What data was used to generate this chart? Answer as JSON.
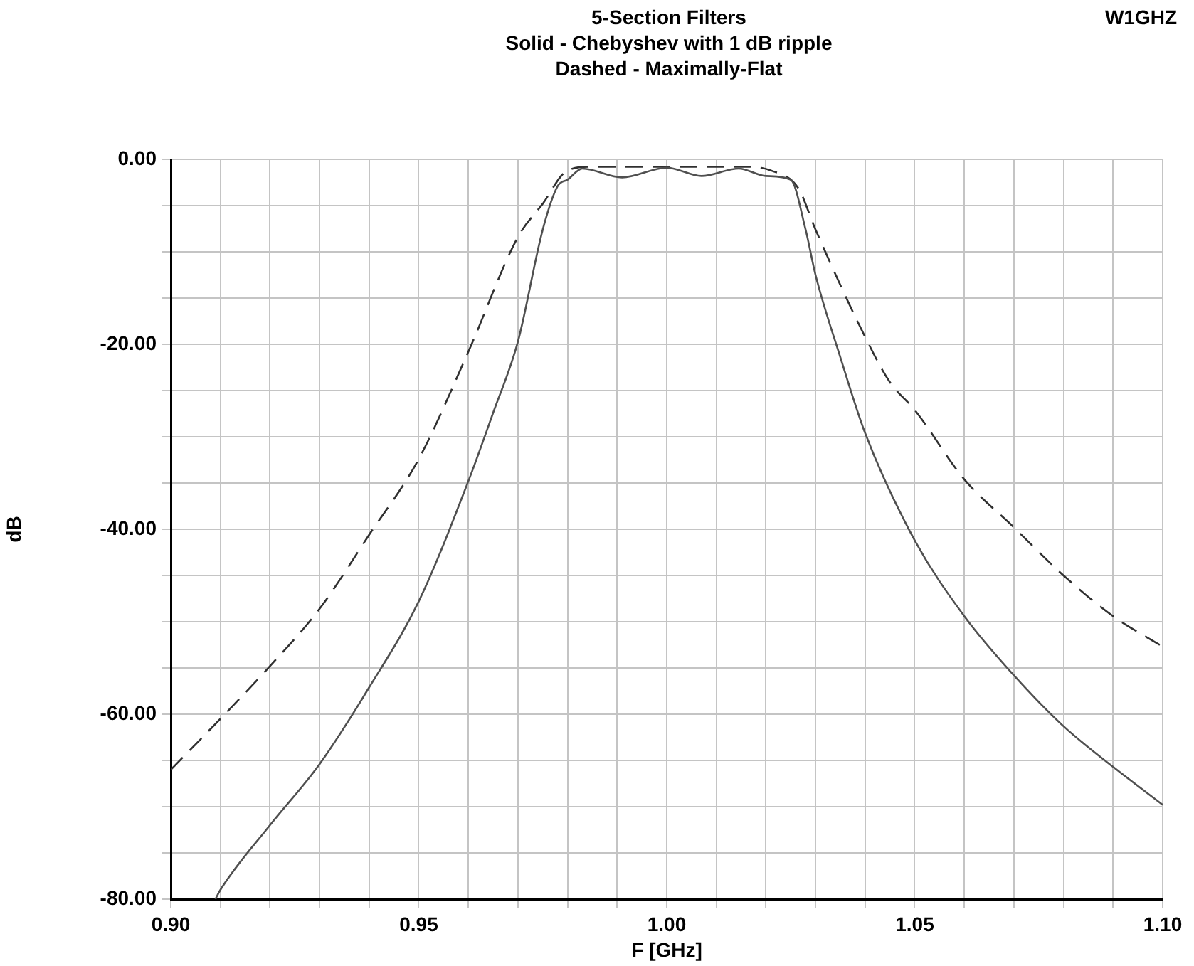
{
  "chart_data": {
    "type": "line",
    "title": "5-Section Filters",
    "subtitle": "Solid - Chebyshev with 1 dB ripple",
    "annotations": [
      "Dashed - Maximally-Flat",
      "W1GHZ"
    ],
    "xlabel": "F [GHz]",
    "ylabel": "dB",
    "xlim": [
      0.9,
      1.1
    ],
    "ylim": [
      -80,
      0
    ],
    "xticks": [
      {
        "value": 0.9,
        "label": "0.90"
      },
      {
        "value": 0.91,
        "label": null
      },
      {
        "value": 0.92,
        "label": null
      },
      {
        "value": 0.93,
        "label": null
      },
      {
        "value": 0.94,
        "label": null
      },
      {
        "value": 0.95,
        "label": "0.95"
      },
      {
        "value": 0.96,
        "label": null
      },
      {
        "value": 0.97,
        "label": null
      },
      {
        "value": 0.98,
        "label": null
      },
      {
        "value": 0.99,
        "label": null
      },
      {
        "value": 1.0,
        "label": "1.00"
      },
      {
        "value": 1.01,
        "label": null
      },
      {
        "value": 1.02,
        "label": null
      },
      {
        "value": 1.03,
        "label": null
      },
      {
        "value": 1.04,
        "label": null
      },
      {
        "value": 1.05,
        "label": "1.05"
      },
      {
        "value": 1.06,
        "label": null
      },
      {
        "value": 1.07,
        "label": null
      },
      {
        "value": 1.08,
        "label": null
      },
      {
        "value": 1.09,
        "label": null
      },
      {
        "value": 1.1,
        "label": "1.10"
      }
    ],
    "yticks": [
      {
        "value": -80,
        "label": "-80.00"
      },
      {
        "value": -75,
        "label": null
      },
      {
        "value": -70,
        "label": null
      },
      {
        "value": -65,
        "label": null
      },
      {
        "value": -60,
        "label": "-60.00"
      },
      {
        "value": -55,
        "label": null
      },
      {
        "value": -50,
        "label": null
      },
      {
        "value": -45,
        "label": null
      },
      {
        "value": -40,
        "label": "-40.00"
      },
      {
        "value": -35,
        "label": null
      },
      {
        "value": -30,
        "label": null
      },
      {
        "value": -25,
        "label": null
      },
      {
        "value": -20,
        "label": "-20.00"
      },
      {
        "value": -15,
        "label": null
      },
      {
        "value": -10,
        "label": null
      },
      {
        "value": -5,
        "label": null
      },
      {
        "value": 0,
        "label": "0.00"
      }
    ],
    "grid": true,
    "legend": false,
    "marker": "none",
    "series": [
      {
        "color": "#505050",
        "line_style": "solid",
        "x": [
          0.909,
          0.91,
          0.92,
          0.93,
          0.94,
          0.95,
          0.96,
          0.965,
          0.97,
          0.975,
          0.978,
          0.98,
          0.983,
          0.991,
          1.0,
          1.007,
          1.0145,
          1.02,
          1.025,
          1.028,
          1.03,
          1.035,
          1.04,
          1.05,
          1.06,
          1.07,
          1.08,
          1.09,
          1.1
        ],
        "values": [
          -80,
          -79,
          -72,
          -65.4,
          -57.1,
          -47.8,
          -34.8,
          -27.4,
          -19.7,
          -7.6,
          -2.9,
          -2.2,
          -1,
          -1.95,
          -0.9,
          -1.8,
          -1,
          -1.8,
          -2.2,
          -7.6,
          -12.5,
          -21.4,
          -29.6,
          -41.2,
          -49.4,
          -55.8,
          -61.3,
          -65.7,
          -69.8
        ]
      },
      {
        "color": "#303030",
        "line_style": "dashed",
        "x": [
          0.9,
          0.91,
          0.92,
          0.93,
          0.94,
          0.95,
          0.96,
          0.97,
          0.975,
          0.98,
          0.985,
          1.0,
          1.016,
          1.021,
          1.0265,
          1.03,
          1.04,
          1.045,
          1.05,
          1.06,
          1.07,
          1.08,
          1.09,
          1.1
        ],
        "values": [
          -66,
          -60.5,
          -54.8,
          -48.6,
          -40.6,
          -32.4,
          -20.8,
          -8.4,
          -4.8,
          -1.2,
          -0.8,
          -0.8,
          -0.8,
          -1.2,
          -3.1,
          -7.6,
          -19.2,
          -24.1,
          -27.1,
          -34.6,
          -39.8,
          -45,
          -49.4,
          -52.7
        ]
      }
    ]
  }
}
